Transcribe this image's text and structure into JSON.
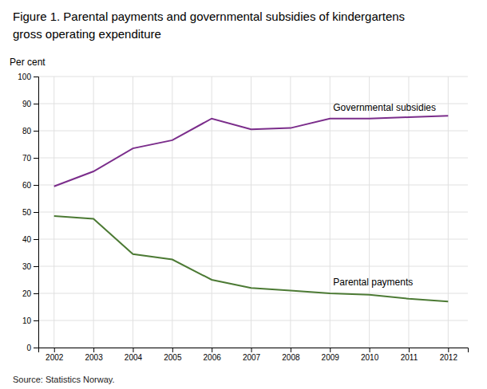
{
  "chart_data": {
    "type": "line",
    "title": "Figure 1. Parental payments and governmental subsidies of kindergartens",
    "subtitle": "gross operating expenditure",
    "ylabel": "Per cent",
    "annotations": [
      "Source: Statistics Norway."
    ],
    "x": [
      2002,
      2003,
      2004,
      2005,
      2006,
      2007,
      2008,
      2009,
      2010,
      2011,
      2012
    ],
    "series": [
      {
        "name": "Governmental subsidies",
        "color": "#7B2D8B",
        "values": [
          59.5,
          65.0,
          73.5,
          76.5,
          84.5,
          80.5,
          81.0,
          84.5,
          84.5,
          85.0,
          85.5
        ]
      },
      {
        "name": "Parental payments",
        "color": "#4C7A34",
        "values": [
          48.5,
          47.5,
          34.5,
          32.5,
          25.0,
          22.0,
          21.0,
          20.0,
          19.5,
          18.0,
          17.0
        ]
      }
    ],
    "xlim": [
      2001.6,
      2012.5
    ],
    "xticks": [
      2002,
      2003,
      2004,
      2005,
      2006,
      2007,
      2008,
      2009,
      2010,
      2011,
      2012
    ],
    "ylim": [
      0,
      100
    ],
    "yticks": [
      0,
      10,
      20,
      30,
      40,
      50,
      60,
      70,
      80,
      90,
      100
    ],
    "grid": true
  }
}
